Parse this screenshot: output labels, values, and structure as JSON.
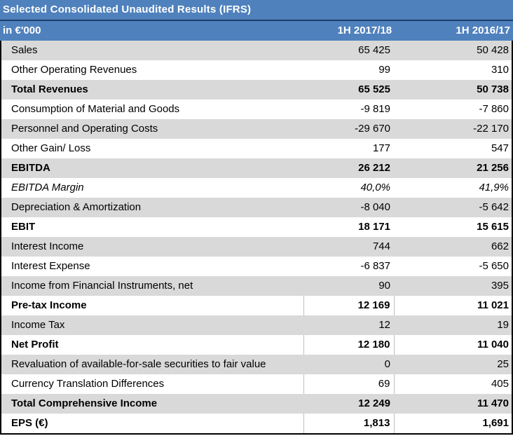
{
  "title": "Selected Consolidated Unaudited Results (IFRS)",
  "header": {
    "label": "in €'000",
    "col1": "1H 2017/18",
    "col2": "1H 2016/17"
  },
  "rows": [
    {
      "label": "Sales",
      "v1": "65 425",
      "v2": "50 428"
    },
    {
      "label": "Other Operating Revenues",
      "v1": "99",
      "v2": "310"
    },
    {
      "label": "Total Revenues",
      "v1": "65 525",
      "v2": "50 738"
    },
    {
      "label": "Consumption of Material and Goods",
      "v1": "-9 819",
      "v2": "-7 860"
    },
    {
      "label": "Personnel and Operating Costs",
      "v1": "-29 670",
      "v2": "-22 170"
    },
    {
      "label": "Other Gain/ Loss",
      "v1": "177",
      "v2": "547"
    },
    {
      "label": "EBITDA",
      "v1": "26 212",
      "v2": "21 256"
    },
    {
      "label": "EBITDA Margin",
      "v1": "40,0%",
      "v2": "41,9%"
    },
    {
      "label": "Depreciation & Amortization",
      "v1": "-8 040",
      "v2": "-5 642"
    },
    {
      "label": "EBIT",
      "v1": "18 171",
      "v2": "15 615"
    },
    {
      "label": "Interest Income",
      "v1": "744",
      "v2": "662"
    },
    {
      "label": "Interest Expense",
      "v1": "-6 837",
      "v2": "-5 650"
    },
    {
      "label": "Income from Financial Instruments, net",
      "v1": "90",
      "v2": "395"
    },
    {
      "label": "Pre-tax Income",
      "v1": "12 169",
      "v2": "11 021"
    },
    {
      "label": "Income Tax",
      "v1": "12",
      "v2": "19"
    },
    {
      "label": "Net Profit",
      "v1": "12 180",
      "v2": "11 040"
    },
    {
      "label": "Revaluation of available-for-sale securities to fair value",
      "v1": "0",
      "v2": "25"
    },
    {
      "label": "Currency Translation Differences",
      "v1": "69",
      "v2": "405"
    },
    {
      "label": "Total Comprehensive Income",
      "v1": "12 249",
      "v2": "11 470"
    },
    {
      "label": "EPS (€)",
      "v1": "1,813",
      "v2": "1,691"
    }
  ]
}
